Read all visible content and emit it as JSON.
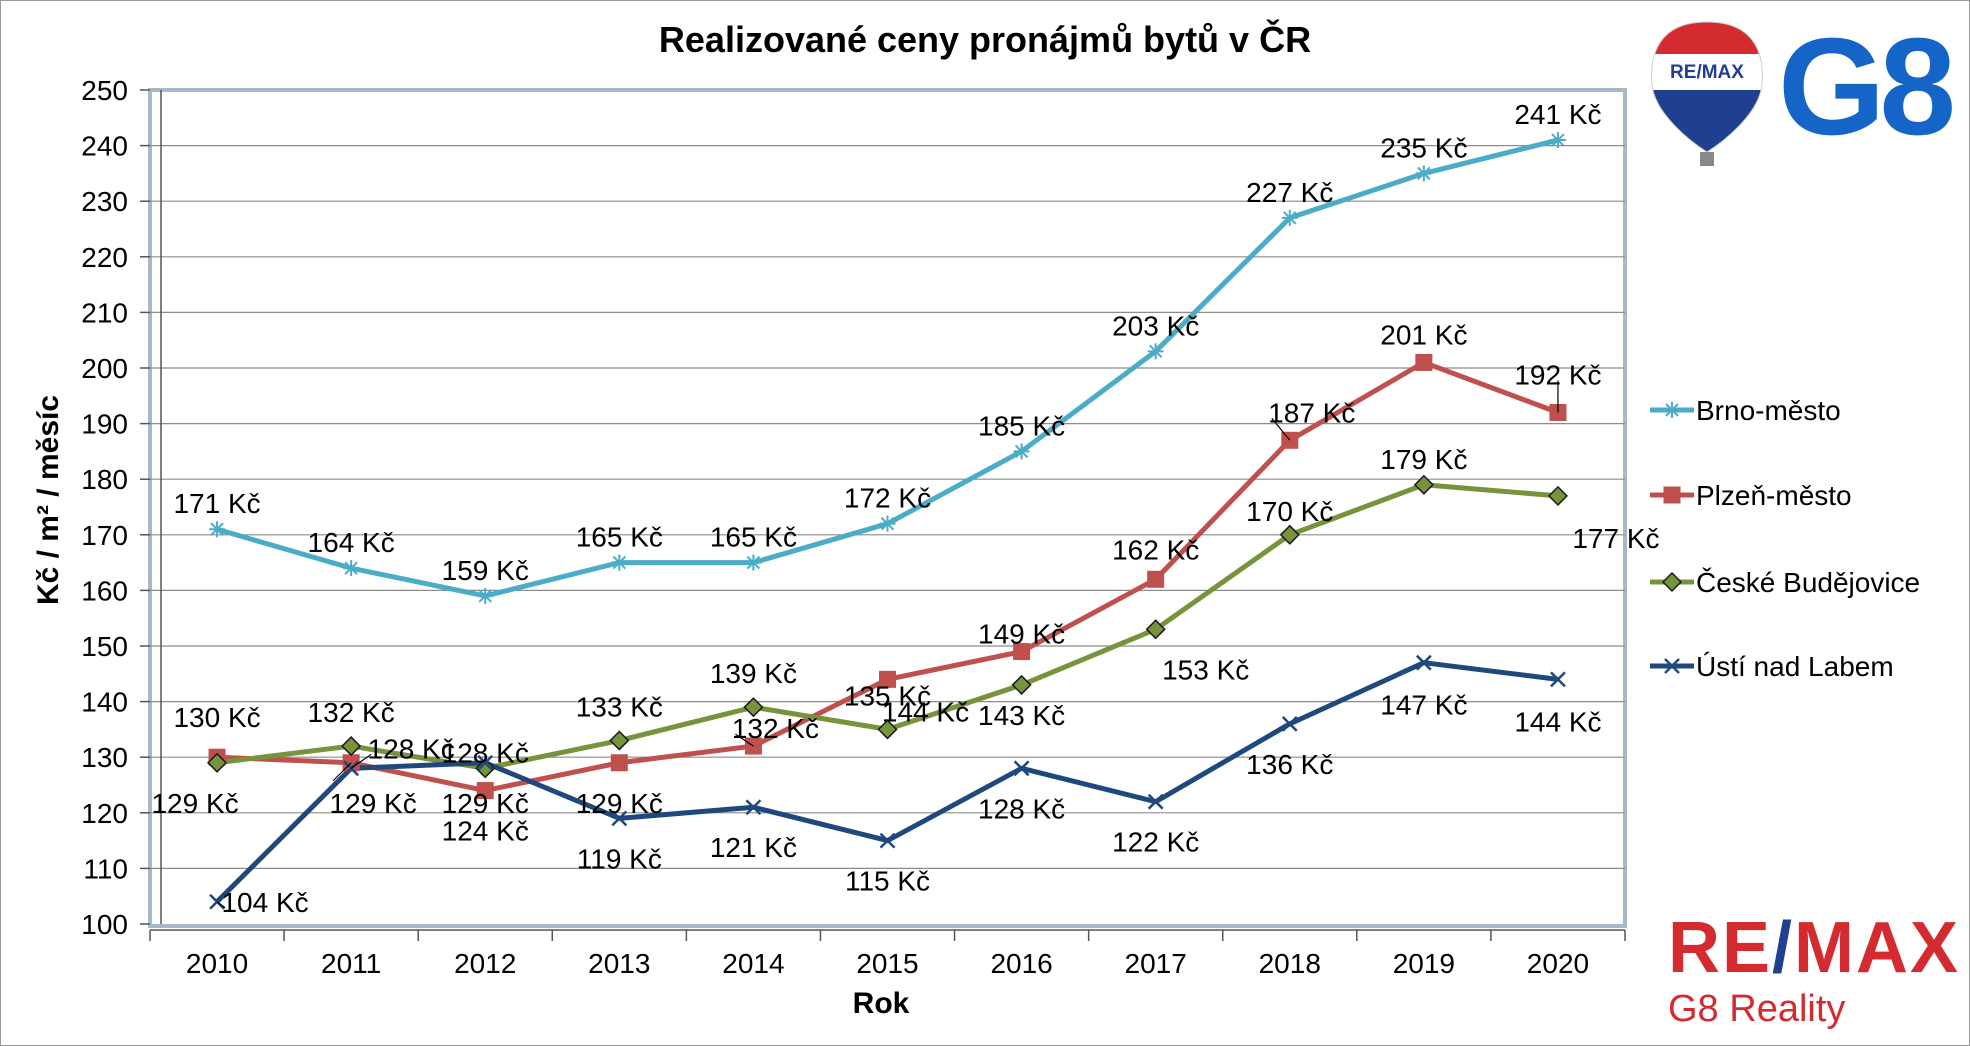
{
  "logos": {
    "balloon_text": "RE/MAX",
    "g8": "G8",
    "remax_main": "RE",
    "remax_slash": "/",
    "remax_end": "MAX",
    "reality": "G8 Reality",
    "colors": {
      "remax_red": "#d42b30",
      "remax_blue": "#1f3f8f",
      "g8_blue": "#1565c8"
    }
  },
  "chart_data": {
    "type": "line",
    "title": "Realizované ceny pronájmů bytů v ČR",
    "xlabel": "Rok",
    "ylabel": "Kč / m² / měsíc",
    "ylim": [
      100,
      250
    ],
    "yticks": [
      100,
      110,
      120,
      130,
      140,
      150,
      160,
      170,
      180,
      190,
      200,
      210,
      220,
      230,
      240,
      250
    ],
    "categories": [
      "2010",
      "2011",
      "2012",
      "2013",
      "2014",
      "2015",
      "2016",
      "2017",
      "2018",
      "2019",
      "2020"
    ],
    "grid": "horizontal",
    "legend_position": "right",
    "label_suffix": " Kč",
    "series": [
      {
        "name": "Brno-město",
        "color": "#4bacc6",
        "marker": "asterisk",
        "values": [
          171,
          164,
          159,
          165,
          165,
          172,
          185,
          203,
          227,
          235,
          241
        ]
      },
      {
        "name": "Plzeň-město",
        "color": "#c0504d",
        "marker": "square",
        "values": [
          130,
          129,
          124,
          129,
          132,
          144,
          149,
          162,
          187,
          201,
          192
        ]
      },
      {
        "name": "České Budějovice",
        "color": "#77933c",
        "marker": "diamond",
        "values": [
          129,
          132,
          128,
          133,
          139,
          135,
          143,
          153,
          170,
          179,
          177
        ]
      },
      {
        "name": "Ústí nad Labem",
        "color": "#1f497d",
        "marker": "x",
        "values": [
          104,
          128,
          129,
          119,
          121,
          115,
          128,
          122,
          136,
          147,
          144
        ]
      }
    ]
  }
}
